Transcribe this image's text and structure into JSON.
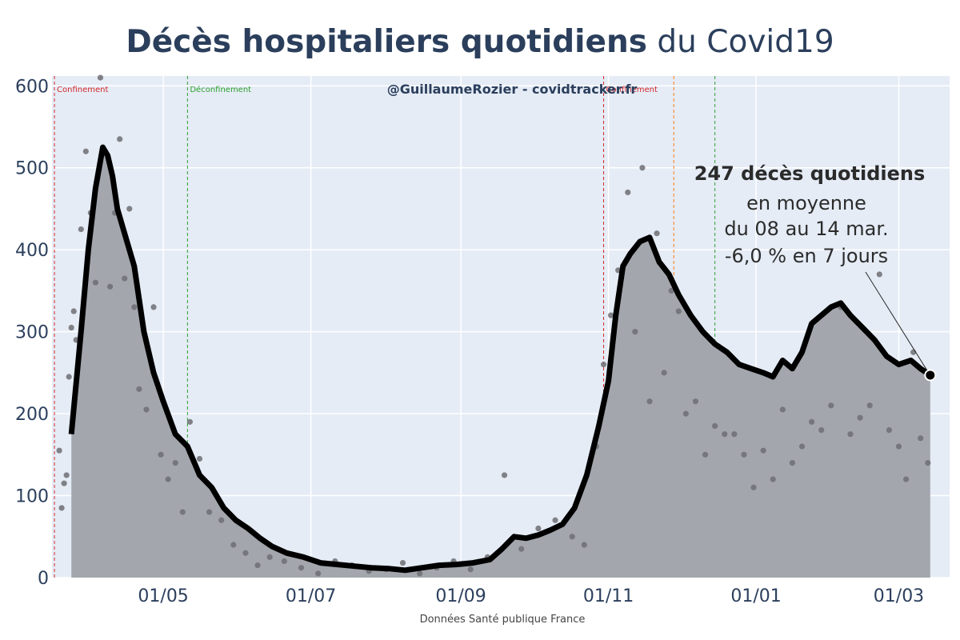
{
  "title": {
    "bold": "Décès hospitaliers quotidiens",
    "rest": " du Covid19"
  },
  "credit": "@GuillaumeRozier - covidtracker.fr",
  "source": "Données Santé publique France",
  "annotation": {
    "line1": "247 décès quotidiens",
    "line2": "en moyenne",
    "line3": "du 08 au 14 mar.",
    "line4": "-6,0 % en 7 jours"
  },
  "colors": {
    "background": "#e5ecf6",
    "grid": "#ffffff",
    "area": "#a3a7ad",
    "line": "#000000",
    "points": "#6f6f73",
    "confinement": "#d62728",
    "deconfinement": "#2ca02c",
    "couvrefeu": "#ff7f0e"
  },
  "events": [
    {
      "date": "2020-03-17",
      "label": "Confinement",
      "kind": "confinement"
    },
    {
      "date": "2020-05-11",
      "label": "Déconfinement",
      "kind": "deconfinement"
    },
    {
      "date": "2020-10-30",
      "label": "Confinement",
      "kind": "confinement"
    },
    {
      "date": "2020-11-28",
      "label": "",
      "kind": "couvrefeu"
    },
    {
      "date": "2020-12-15",
      "label": "",
      "kind": "deconfinement"
    }
  ],
  "chart_data": {
    "type": "line",
    "xaxis": {
      "type": "date",
      "range": [
        "2020-03-16",
        "2021-03-22"
      ],
      "tickvals": [
        "2020-05-01",
        "2020-07-01",
        "2020-09-01",
        "2020-11-01",
        "2021-01-01",
        "2021-03-01"
      ],
      "ticktext": [
        "01/05",
        "01/07",
        "01/09",
        "01/11",
        "01/01",
        "01/03"
      ]
    },
    "yaxis": {
      "range": [
        0,
        612
      ],
      "tickvals": [
        0,
        100,
        200,
        300,
        400,
        500,
        600
      ]
    },
    "grid": true,
    "series": [
      {
        "kind": "moving-average-line-with-area",
        "x": [
          "2020-03-24",
          "2020-03-28",
          "2020-03-31",
          "2020-04-03",
          "2020-04-06",
          "2020-04-08",
          "2020-04-10",
          "2020-04-12",
          "2020-04-15",
          "2020-04-19",
          "2020-04-23",
          "2020-04-27",
          "2020-05-01",
          "2020-05-06",
          "2020-05-11",
          "2020-05-16",
          "2020-05-21",
          "2020-05-26",
          "2020-05-31",
          "2020-06-05",
          "2020-06-10",
          "2020-06-15",
          "2020-06-21",
          "2020-06-28",
          "2020-07-05",
          "2020-07-12",
          "2020-07-19",
          "2020-07-26",
          "2020-08-02",
          "2020-08-09",
          "2020-08-16",
          "2020-08-23",
          "2020-08-30",
          "2020-09-06",
          "2020-09-13",
          "2020-09-18",
          "2020-09-23",
          "2020-09-28",
          "2020-10-03",
          "2020-10-08",
          "2020-10-13",
          "2020-10-18",
          "2020-10-23",
          "2020-10-28",
          "2020-11-01",
          "2020-11-04",
          "2020-11-07",
          "2020-11-10",
          "2020-11-14",
          "2020-11-18",
          "2020-11-22",
          "2020-11-26",
          "2020-11-30",
          "2020-12-05",
          "2020-12-10",
          "2020-12-15",
          "2020-12-20",
          "2020-12-25",
          "2020-12-30",
          "2021-01-04",
          "2021-01-08",
          "2021-01-12",
          "2021-01-16",
          "2021-01-20",
          "2021-01-24",
          "2021-01-28",
          "2021-02-01",
          "2021-02-05",
          "2021-02-09",
          "2021-02-14",
          "2021-02-19",
          "2021-02-24",
          "2021-03-01",
          "2021-03-06",
          "2021-03-10",
          "2021-03-14"
        ],
        "y": [
          175,
          300,
          400,
          475,
          525,
          515,
          490,
          450,
          420,
          380,
          300,
          250,
          215,
          175,
          160,
          125,
          110,
          85,
          70,
          60,
          48,
          38,
          30,
          25,
          18,
          16,
          14,
          12,
          11,
          9,
          12,
          15,
          16,
          18,
          22,
          35,
          50,
          48,
          52,
          58,
          65,
          85,
          125,
          185,
          240,
          320,
          380,
          395,
          410,
          415,
          385,
          370,
          345,
          320,
          300,
          285,
          275,
          260,
          255,
          250,
          245,
          265,
          255,
          275,
          310,
          320,
          330,
          335,
          320,
          305,
          290,
          270,
          260,
          265,
          255,
          247
        ]
      },
      {
        "kind": "daily-points",
        "x": [
          "2020-03-19",
          "2020-03-20",
          "2020-03-21",
          "2020-03-22",
          "2020-03-23",
          "2020-03-24",
          "2020-03-25",
          "2020-03-26",
          "2020-03-28",
          "2020-03-30",
          "2020-04-01",
          "2020-04-03",
          "2020-04-05",
          "2020-04-07",
          "2020-04-09",
          "2020-04-11",
          "2020-04-13",
          "2020-04-15",
          "2020-04-17",
          "2020-04-19",
          "2020-04-21",
          "2020-04-24",
          "2020-04-27",
          "2020-04-30",
          "2020-05-03",
          "2020-05-06",
          "2020-05-09",
          "2020-05-12",
          "2020-05-16",
          "2020-05-20",
          "2020-05-25",
          "2020-05-30",
          "2020-06-04",
          "2020-06-09",
          "2020-06-14",
          "2020-06-20",
          "2020-06-27",
          "2020-07-04",
          "2020-07-11",
          "2020-07-18",
          "2020-07-25",
          "2020-08-01",
          "2020-08-08",
          "2020-08-15",
          "2020-08-22",
          "2020-08-29",
          "2020-09-05",
          "2020-09-12",
          "2020-09-19",
          "2020-09-26",
          "2020-10-03",
          "2020-10-10",
          "2020-10-17",
          "2020-10-22",
          "2020-10-27",
          "2020-10-30",
          "2020-11-02",
          "2020-11-05",
          "2020-11-09",
          "2020-11-12",
          "2020-11-15",
          "2020-11-18",
          "2020-11-21",
          "2020-11-24",
          "2020-11-27",
          "2020-11-30",
          "2020-12-03",
          "2020-12-07",
          "2020-12-11",
          "2020-12-15",
          "2020-12-19",
          "2020-12-23",
          "2020-12-27",
          "2020-12-31",
          "2021-01-04",
          "2021-01-08",
          "2021-01-12",
          "2021-01-16",
          "2021-01-20",
          "2021-01-24",
          "2021-01-28",
          "2021-02-01",
          "2021-02-05",
          "2021-02-09",
          "2021-02-13",
          "2021-02-17",
          "2021-02-21",
          "2021-02-25",
          "2021-03-01",
          "2021-03-04",
          "2021-03-07",
          "2021-03-10",
          "2021-03-13"
        ],
        "y": [
          155,
          85,
          115,
          125,
          245,
          305,
          325,
          290,
          425,
          520,
          445,
          360,
          610,
          520,
          355,
          445,
          535,
          365,
          450,
          330,
          230,
          205,
          330,
          150,
          120,
          140,
          80,
          190,
          145,
          80,
          70,
          40,
          30,
          15,
          25,
          20,
          12,
          5,
          20,
          15,
          8,
          10,
          18,
          5,
          12,
          20,
          10,
          25,
          125,
          35,
          60,
          70,
          50,
          40,
          160,
          260,
          320,
          375,
          470,
          300,
          500,
          215,
          420,
          250,
          350,
          325,
          200,
          215,
          150,
          185,
          175,
          175,
          150,
          110,
          155,
          120,
          205,
          140,
          160,
          190,
          180,
          210,
          330,
          175,
          195,
          210,
          370,
          180,
          160,
          120,
          275,
          170,
          140
        ]
      }
    ]
  }
}
